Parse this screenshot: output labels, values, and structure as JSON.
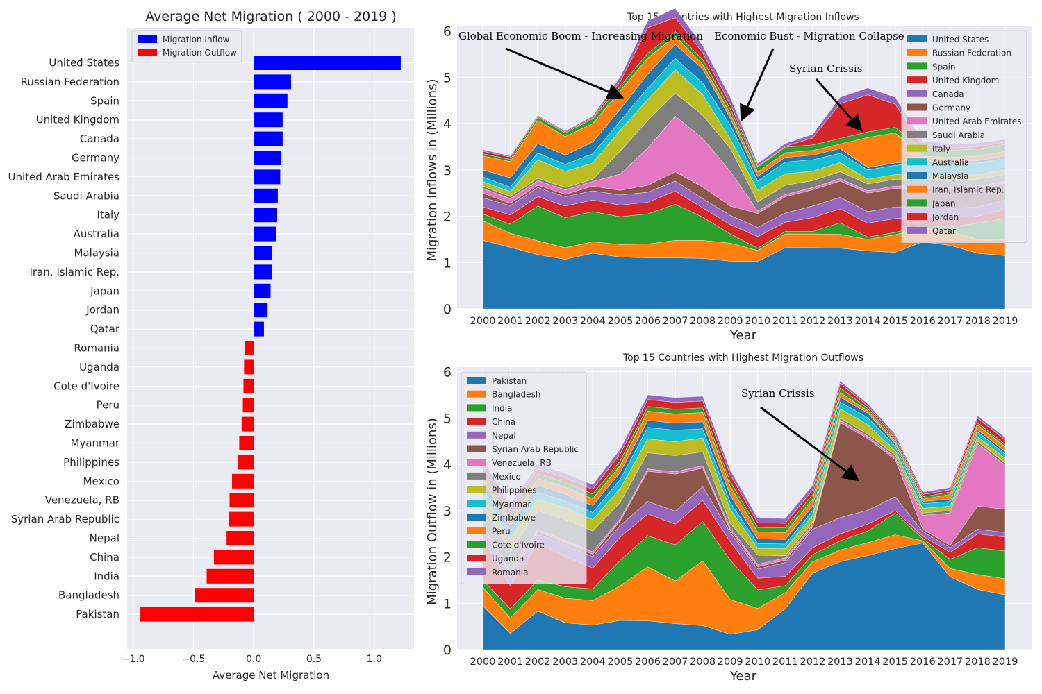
{
  "colors": {
    "background": "#eaeaf2",
    "grid": "#ffffff",
    "inflow": "#0000ff",
    "outflow": "#ff0000",
    "palette": [
      "#1f77b4",
      "#ff7f0e",
      "#2ca02c",
      "#d62728",
      "#9467bd",
      "#8c564b",
      "#e377c2",
      "#7f7f7f",
      "#bcbd22",
      "#17becf",
      "#1f77b4",
      "#ff7f0e",
      "#2ca02c",
      "#d62728",
      "#9467bd"
    ]
  },
  "chart_data": [
    {
      "id": "net",
      "type": "bar",
      "orientation": "horizontal",
      "title": "Average Net Migration ( 2000 - 2019 )",
      "xlabel": "Average Net Migration",
      "ylabel": "",
      "xlim": [
        -1.05,
        1.33
      ],
      "xticks": [
        -1.0,
        -0.5,
        0.0,
        0.5,
        1.0
      ],
      "xtick_labels": [
        "−1.0",
        "−0.5",
        "0.0",
        "0.5",
        "1.0"
      ],
      "legend": {
        "placement": "top-left",
        "entries": [
          "Migration Inflow",
          "Migration Outflow"
        ]
      },
      "grid": true,
      "categories": [
        "United States",
        "Russian Federation",
        "Spain",
        "United Kingdom",
        "Canada",
        "Germany",
        "United Arab Emirates",
        "Saudi Arabia",
        "Italy",
        "Australia",
        "Malaysia",
        "Iran, Islamic Rep.",
        "Japan",
        "Jordan",
        "Qatar",
        "Romania",
        "Uganda",
        "Cote d'Ivoire",
        "Peru",
        "Zimbabwe",
        "Myanmar",
        "Philippines",
        "Mexico",
        "Venezuela, RB",
        "Syrian Arab Republic",
        "Nepal",
        "China",
        "India",
        "Bangladesh",
        "Pakistan"
      ],
      "values": [
        1.22,
        0.31,
        0.28,
        0.24,
        0.24,
        0.23,
        0.22,
        0.2,
        0.195,
        0.185,
        0.15,
        0.15,
        0.14,
        0.115,
        0.085,
        -0.075,
        -0.08,
        -0.085,
        -0.09,
        -0.1,
        -0.12,
        -0.13,
        -0.18,
        -0.2,
        -0.205,
        -0.225,
        -0.33,
        -0.39,
        -0.49,
        -0.94
      ]
    },
    {
      "id": "inflow",
      "type": "area",
      "stacked": true,
      "title": "Top 15 Countries with Highest Migration Inflows",
      "xlabel": "Year",
      "ylabel": "Migration Inflows in (Millions)",
      "ylim": [
        0,
        6.1
      ],
      "yticks": [
        0,
        1,
        2,
        3,
        4,
        5,
        6
      ],
      "legend": {
        "placement": "top-right"
      },
      "grid": true,
      "x": [
        2000,
        2001,
        2002,
        2003,
        2004,
        2005,
        2006,
        2007,
        2008,
        2009,
        2010,
        2011,
        2012,
        2013,
        2014,
        2015,
        2016,
        2017,
        2018,
        2019
      ],
      "series": [
        {
          "name": "United States",
          "values": [
            1.48,
            1.33,
            1.17,
            1.07,
            1.2,
            1.12,
            1.1,
            1.1,
            1.09,
            1.03,
            1.02,
            1.32,
            1.32,
            1.31,
            1.25,
            1.22,
            1.45,
            1.37,
            1.2,
            1.15
          ]
        },
        {
          "name": "Russian Federation",
          "values": [
            0.42,
            0.3,
            0.3,
            0.25,
            0.25,
            0.27,
            0.3,
            0.38,
            0.39,
            0.39,
            0.24,
            0.3,
            0.3,
            0.3,
            0.25,
            0.38,
            0.3,
            0.3,
            0.3,
            0.35
          ]
        },
        {
          "name": "Spain",
          "values": [
            0.15,
            0.2,
            0.75,
            0.65,
            0.65,
            0.6,
            0.65,
            0.78,
            0.5,
            0.2,
            0.05,
            0.05,
            0.05,
            0.25,
            0.05,
            0.05,
            0.05,
            0.1,
            0.35,
            0.45
          ]
        },
        {
          "name": "United Kingdom",
          "values": [
            0.15,
            0.2,
            0.2,
            0.25,
            0.25,
            0.25,
            0.25,
            0.28,
            0.2,
            0.2,
            0.25,
            0.2,
            0.3,
            0.3,
            0.3,
            0.3,
            0.2,
            0.2,
            0.15,
            0.2
          ]
        },
        {
          "name": "Canada",
          "values": [
            0.2,
            0.2,
            0.2,
            0.2,
            0.2,
            0.22,
            0.22,
            0.22,
            0.2,
            0.2,
            0.2,
            0.2,
            0.25,
            0.25,
            0.25,
            0.25,
            0.2,
            0.2,
            0.2,
            0.2
          ]
        },
        {
          "name": "Germany",
          "values": [
            0.1,
            0.05,
            0.05,
            0.05,
            0.1,
            0.1,
            0.15,
            0.2,
            0.25,
            0.2,
            0.3,
            0.35,
            0.35,
            0.35,
            0.4,
            0.4,
            0.4,
            0.4,
            0.4,
            0.35
          ]
        },
        {
          "name": "United Arab Emirates",
          "values": [
            0.1,
            0.1,
            0.1,
            0.1,
            0.1,
            0.35,
            0.8,
            1.2,
            1.05,
            0.75,
            0.05,
            0.05,
            0.05,
            0.05,
            0.05,
            0.05,
            0.05,
            0.05,
            0.05,
            0.05
          ]
        },
        {
          "name": "Saudi Arabia",
          "values": [
            0.05,
            0.05,
            0.05,
            0.05,
            0.05,
            0.5,
            0.6,
            0.5,
            0.5,
            0.5,
            0.2,
            0.2,
            0.15,
            0.15,
            0.15,
            0.15,
            0.15,
            0.15,
            0.15,
            0.15
          ]
        },
        {
          "name": "Italy",
          "values": [
            0.1,
            0.1,
            0.4,
            0.35,
            0.35,
            0.45,
            0.45,
            0.5,
            0.45,
            0.2,
            0.25,
            0.25,
            0.2,
            0.2,
            0.1,
            0.1,
            0.1,
            0.1,
            0.1,
            0.1
          ]
        },
        {
          "name": "Australia",
          "values": [
            0.1,
            0.1,
            0.15,
            0.15,
            0.2,
            0.2,
            0.25,
            0.25,
            0.25,
            0.3,
            0.2,
            0.25,
            0.25,
            0.2,
            0.2,
            0.2,
            0.25,
            0.25,
            0.25,
            0.25
          ]
        },
        {
          "name": "Malaysia",
          "values": [
            0.15,
            0.2,
            0.2,
            0.2,
            0.25,
            0.25,
            0.3,
            0.3,
            0.3,
            0.15,
            0.1,
            0.1,
            0.1,
            0.1,
            0.05,
            0.05,
            0.05,
            0.05,
            0.05,
            0.05
          ]
        },
        {
          "name": "Iran, Islamic Rep.",
          "values": [
            0.3,
            0.35,
            0.5,
            0.4,
            0.4,
            0.4,
            0.35,
            0.18,
            0.1,
            0.1,
            0.1,
            0.1,
            0.1,
            0.1,
            0.65,
            0.65,
            0.1,
            0.1,
            0.1,
            0.1
          ]
        },
        {
          "name": "Japan",
          "values": [
            0.05,
            0.05,
            0.07,
            0.08,
            0.1,
            0.1,
            0.1,
            0.1,
            0.1,
            0.1,
            0.1,
            0.12,
            0.12,
            0.12,
            0.12,
            0.12,
            0.15,
            0.15,
            0.15,
            0.15
          ]
        },
        {
          "name": "Jordan",
          "values": [
            0.05,
            0.05,
            0.02,
            0.02,
            0.02,
            0.1,
            0.55,
            0.3,
            0.15,
            0.1,
            0.02,
            0.02,
            0.15,
            0.75,
            0.8,
            0.5,
            0.05,
            0.05,
            0.05,
            0.05
          ]
        },
        {
          "name": "Qatar",
          "values": [
            0.04,
            0.02,
            0.02,
            0.02,
            0.04,
            0.1,
            0.15,
            0.2,
            0.15,
            0.15,
            0.06,
            0.06,
            0.08,
            0.14,
            0.15,
            0.15,
            0.12,
            0.1,
            0.08,
            0.06
          ]
        }
      ],
      "annotations": [
        "Global Economic Boom - Increasing Migration",
        "Economic Bust - Migration Collapse",
        "Syrian Crissis"
      ]
    },
    {
      "id": "outflow",
      "type": "area",
      "stacked": true,
      "title": "Top 15 Countries with Highest Migration Outflows",
      "xlabel": "Year",
      "ylabel": "Migration Outflow in (Millions)",
      "ylim": [
        0,
        6.1
      ],
      "yticks": [
        0,
        1,
        2,
        3,
        4,
        5,
        6
      ],
      "legend": {
        "placement": "top-left"
      },
      "grid": true,
      "x": [
        2000,
        2001,
        2002,
        2003,
        2004,
        2005,
        2006,
        2007,
        2008,
        2009,
        2010,
        2011,
        2012,
        2013,
        2014,
        2015,
        2016,
        2017,
        2018,
        2019
      ],
      "series": [
        {
          "name": "Pakistan",
          "values": [
            0.95,
            0.35,
            0.83,
            0.58,
            0.53,
            0.63,
            0.62,
            0.56,
            0.52,
            0.33,
            0.43,
            0.88,
            1.65,
            1.9,
            2.03,
            2.18,
            2.3,
            1.57,
            1.3,
            1.18
          ]
        },
        {
          "name": "Bangladesh",
          "values": [
            0.4,
            0.33,
            0.47,
            0.53,
            0.53,
            0.75,
            1.17,
            0.92,
            1.4,
            0.75,
            0.46,
            0.35,
            0.25,
            0.25,
            0.28,
            0.3,
            0.05,
            0.18,
            0.32,
            0.35
          ]
        },
        {
          "name": "India",
          "values": [
            0.15,
            0.2,
            0.2,
            0.25,
            0.25,
            0.55,
            0.67,
            0.78,
            0.85,
            0.85,
            0.4,
            0.15,
            0.15,
            0.2,
            0.25,
            0.47,
            0.05,
            0.2,
            0.58,
            0.6
          ]
        },
        {
          "name": "China",
          "values": [
            0.9,
            0.5,
            0.8,
            0.65,
            0.45,
            0.5,
            0.47,
            0.45,
            0.45,
            0.4,
            0.25,
            0.2,
            0.15,
            0.15,
            0.15,
            0.05,
            0.05,
            0.15,
            0.3,
            0.3
          ]
        },
        {
          "name": "Nepal",
          "values": [
            0.2,
            0.2,
            0.2,
            0.25,
            0.25,
            0.25,
            0.27,
            0.28,
            0.3,
            0.2,
            0.2,
            0.3,
            0.4,
            0.35,
            0.3,
            0.3,
            0.1,
            0.1,
            0.1,
            0.1
          ]
        },
        {
          "name": "Syrian Arab Republic",
          "values": [
            0.05,
            0.05,
            0.05,
            0.05,
            0.05,
            0.1,
            0.65,
            0.8,
            0.4,
            0.05,
            0.05,
            0.05,
            0.05,
            2.05,
            1.55,
            0.8,
            0.05,
            0.05,
            0.5,
            0.5
          ]
        },
        {
          "name": "Venezuela, RB",
          "values": [
            0.05,
            0.05,
            0.05,
            0.05,
            0.05,
            0.05,
            0.05,
            0.05,
            0.05,
            0.05,
            0.05,
            0.05,
            0.05,
            0.05,
            0.05,
            0.05,
            0.3,
            0.7,
            1.35,
            0.95
          ]
        },
        {
          "name": "Mexico",
          "values": [
            0.4,
            0.45,
            0.4,
            0.45,
            0.45,
            0.35,
            0.35,
            0.35,
            0.3,
            0.1,
            0.2,
            0.05,
            0.05,
            0.05,
            0.05,
            0.05,
            0.05,
            0.05,
            0.05,
            0.05
          ]
        },
        {
          "name": "Philippines",
          "values": [
            0.25,
            0.25,
            0.25,
            0.25,
            0.25,
            0.3,
            0.3,
            0.3,
            0.3,
            0.3,
            0.15,
            0.15,
            0.15,
            0.2,
            0.2,
            0.1,
            0.1,
            0.1,
            0.1,
            0.1
          ]
        },
        {
          "name": "Myanmar",
          "values": [
            0.15,
            0.15,
            0.15,
            0.15,
            0.15,
            0.2,
            0.25,
            0.25,
            0.2,
            0.15,
            0.1,
            0.1,
            0.1,
            0.15,
            0.15,
            0.1,
            0.1,
            0.1,
            0.1,
            0.1
          ]
        },
        {
          "name": "Zimbabwe",
          "values": [
            0.15,
            0.15,
            0.15,
            0.15,
            0.15,
            0.15,
            0.15,
            0.15,
            0.15,
            0.15,
            0.1,
            0.1,
            0.1,
            0.1,
            0.1,
            0.05,
            0.05,
            0.05,
            0.05,
            0.05
          ]
        },
        {
          "name": "Peru",
          "values": [
            0.1,
            0.1,
            0.15,
            0.15,
            0.15,
            0.15,
            0.2,
            0.2,
            0.2,
            0.2,
            0.15,
            0.15,
            0.15,
            0.1,
            0.05,
            0.05,
            0.05,
            0.1,
            0.1,
            0.1
          ]
        },
        {
          "name": "Cote d'Ivoire",
          "values": [
            0.1,
            0.1,
            0.1,
            0.1,
            0.1,
            0.1,
            0.1,
            0.1,
            0.1,
            0.1,
            0.1,
            0.1,
            0.1,
            0.1,
            0.05,
            0.05,
            0.05,
            0.05,
            0.05,
            0.05
          ]
        },
        {
          "name": "Uganda",
          "values": [
            0.1,
            0.1,
            0.1,
            0.1,
            0.1,
            0.15,
            0.15,
            0.15,
            0.15,
            0.15,
            0.1,
            0.1,
            0.1,
            0.1,
            0.05,
            0.05,
            0.05,
            0.05,
            0.1,
            0.1
          ]
        },
        {
          "name": "Romania",
          "values": [
            0.15,
            0.15,
            0.1,
            0.1,
            0.1,
            0.1,
            0.1,
            0.1,
            0.1,
            0.1,
            0.1,
            0.1,
            0.1,
            0.05,
            0.05,
            0.05,
            0.05,
            0.05,
            0.05,
            0.05
          ]
        }
      ],
      "annotations": [
        "Syrian Crissis"
      ]
    }
  ]
}
